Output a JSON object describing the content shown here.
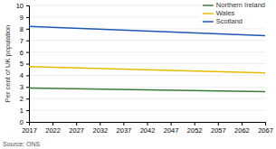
{
  "chart_data": {
    "type": "line",
    "ylabel": "Per cent of UK population",
    "source": "Source: ONS",
    "x": [
      2017,
      2067
    ],
    "xlim": [
      2017,
      2067
    ],
    "xticks": [
      2017,
      2022,
      2027,
      2032,
      2037,
      2042,
      2047,
      2052,
      2057,
      2062,
      2067
    ],
    "ylim": [
      0,
      10
    ],
    "yticks": [
      0,
      1,
      2,
      3,
      4,
      5,
      6,
      7,
      8,
      9,
      10
    ],
    "grid": true,
    "legend": "upper right",
    "series": [
      {
        "name": "Northern Ireland",
        "color": "#3a7a3a",
        "values": [
          2.9,
          2.6
        ]
      },
      {
        "name": "Wales",
        "color": "#e8b800",
        "values": [
          4.75,
          4.2
        ]
      },
      {
        "name": "Scotland",
        "color": "#1a5ab5",
        "values": [
          8.2,
          7.4
        ]
      }
    ]
  }
}
